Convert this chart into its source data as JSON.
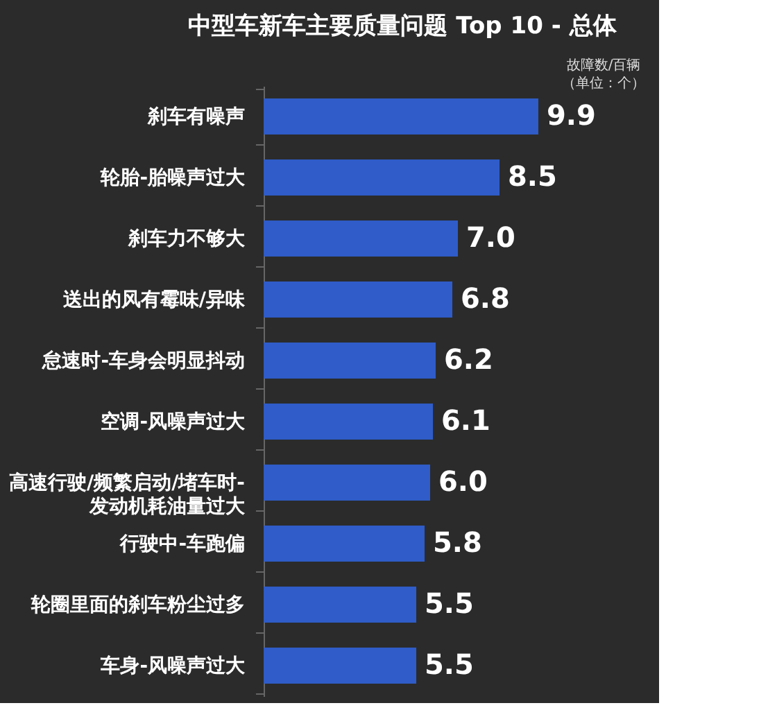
{
  "chart_data": {
    "type": "bar",
    "orientation": "horizontal",
    "title": "中型车新车主要质量问题 Top 10 - 总体",
    "categories": [
      "刹车有噪声",
      "轮胎-胎噪声过大",
      "刹车力不够大",
      "送出的风有霉味/异味",
      "怠速时-车身会明显抖动",
      "空调-风噪声过大",
      "高速行驶/频繁启动/堵车时-\n发动机耗油量过大",
      "行驶中-车跑偏",
      "轮圈里面的刹车粉尘过多",
      "车身-风噪声过大"
    ],
    "values": [
      9.9,
      8.5,
      7.0,
      6.8,
      6.2,
      6.1,
      6.0,
      5.8,
      5.5,
      5.5
    ],
    "value_labels": [
      "9.9",
      "8.5",
      "7.0",
      "6.8",
      "6.2",
      "6.1",
      "6.0",
      "5.8",
      "5.5",
      "5.5"
    ],
    "color": "#2f5cc8",
    "tick_labels": "y",
    "grid": false,
    "annotations": [
      "故障数/百辆",
      "（单位：个）"
    ]
  }
}
